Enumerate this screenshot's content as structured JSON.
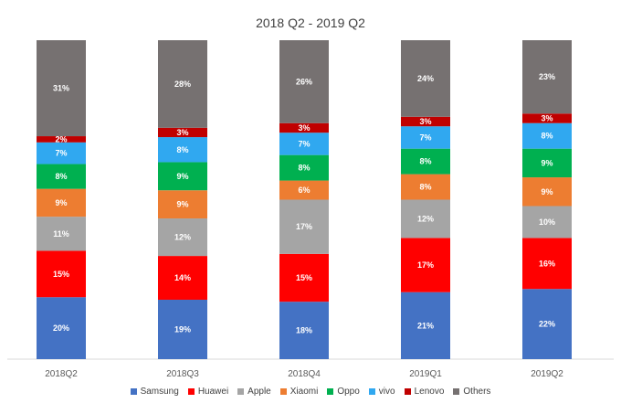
{
  "chart_data": {
    "type": "bar",
    "stacked": true,
    "title": "2018 Q2 - 2019 Q2",
    "categories": [
      "2018Q2",
      "2018Q3",
      "2018Q4",
      "2019Q1",
      "2019Q2"
    ],
    "series": [
      {
        "name": "Samsung",
        "color": "#4472c4",
        "values": [
          20,
          19,
          18,
          21,
          22
        ]
      },
      {
        "name": "Huawei",
        "color": "#ff0000",
        "values": [
          15,
          14,
          15,
          17,
          16
        ]
      },
      {
        "name": "Apple",
        "color": "#a5a5a5",
        "values": [
          11,
          12,
          17,
          12,
          10
        ]
      },
      {
        "name": "Xiaomi",
        "color": "#ed7d31",
        "values": [
          9,
          9,
          6,
          8,
          9
        ]
      },
      {
        "name": "Oppo",
        "color": "#00b050",
        "values": [
          8,
          9,
          8,
          8,
          9
        ]
      },
      {
        "name": "vivo",
        "color": "#30a8f0",
        "values": [
          7,
          8,
          7,
          7,
          8
        ]
      },
      {
        "name": "Lenovo",
        "color": "#c00000",
        "values": [
          2,
          3,
          3,
          3,
          3
        ]
      },
      {
        "name": "Others",
        "color": "#767171",
        "values": [
          31,
          28,
          26,
          24,
          23
        ]
      }
    ],
    "value_suffix": "%",
    "legend_position": "bottom",
    "grid": false
  }
}
